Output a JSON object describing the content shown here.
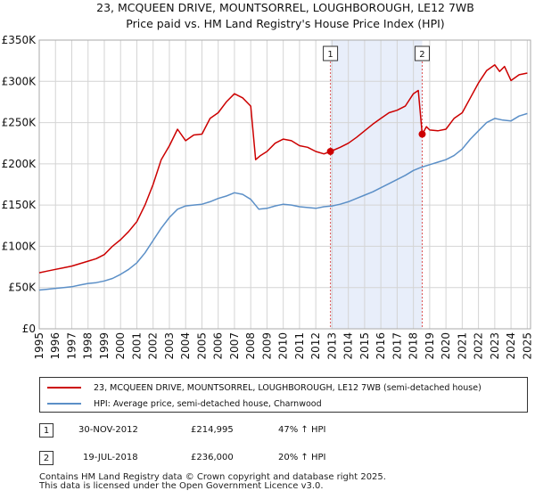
{
  "chart_data": {
    "type": "line",
    "title": "23, MCQUEEN DRIVE, MOUNTSORREL, LOUGHBOROUGH, LE12 7WB",
    "subtitle": "Price paid vs. HM Land Registry's House Price Index (HPI)",
    "xlabel": "",
    "ylabel": "",
    "xlim": [
      1995,
      2025.2
    ],
    "ylim": [
      0,
      350000
    ],
    "grid": true,
    "xticks": [
      1995,
      1996,
      1997,
      1998,
      1999,
      2000,
      2001,
      2002,
      2003,
      2004,
      2005,
      2006,
      2007,
      2008,
      2009,
      2010,
      2011,
      2012,
      2013,
      2014,
      2015,
      2016,
      2017,
      2018,
      2019,
      2020,
      2021,
      2022,
      2023,
      2024,
      2025
    ],
    "yticks": [
      {
        "value": 0,
        "label": "£0"
      },
      {
        "value": 50000,
        "label": "£50K"
      },
      {
        "value": 100000,
        "label": "£100K"
      },
      {
        "value": 150000,
        "label": "£150K"
      },
      {
        "value": 200000,
        "label": "£200K"
      },
      {
        "value": 250000,
        "label": "£250K"
      },
      {
        "value": 300000,
        "label": "£300K"
      },
      {
        "value": 350000,
        "label": "£350K"
      }
    ],
    "series": [
      {
        "name": "23, MCQUEEN DRIVE, MOUNTSORREL, LOUGHBOROUGH, LE12 7WB (semi-detached house)",
        "color": "#cc0000",
        "x": [
          1995,
          1995.5,
          1996,
          1996.5,
          1997,
          1997.5,
          1998,
          1998.5,
          1999,
          1999.5,
          2000,
          2000.5,
          2001,
          2001.5,
          2002,
          2002.5,
          2003,
          2003.5,
          2004,
          2004.5,
          2005,
          2005.5,
          2006,
          2006.5,
          2007,
          2007.5,
          2008,
          2008.3,
          2008.6,
          2009,
          2009.5,
          2010,
          2010.5,
          2011,
          2011.5,
          2012,
          2012.5,
          2012.9,
          2013.5,
          2014,
          2014.5,
          2015,
          2015.5,
          2016,
          2016.5,
          2017,
          2017.5,
          2018,
          2018.3,
          2018.54,
          2018.6,
          2018.8,
          2019,
          2019.5,
          2020,
          2020.5,
          2021,
          2021.5,
          2022,
          2022.5,
          2023,
          2023.3,
          2023.6,
          2024,
          2024.5,
          2025
        ],
        "values": [
          68000,
          70000,
          72000,
          74000,
          76000,
          79000,
          82000,
          85000,
          90000,
          100000,
          108000,
          118000,
          130000,
          150000,
          175000,
          205000,
          222000,
          242000,
          228000,
          235000,
          236000,
          255000,
          262000,
          275000,
          285000,
          280000,
          270000,
          205000,
          210000,
          215000,
          225000,
          230000,
          228000,
          222000,
          220000,
          215000,
          212000,
          214995,
          220000,
          225000,
          232000,
          240000,
          248000,
          255000,
          262000,
          265000,
          270000,
          285000,
          289000,
          236000,
          238000,
          245000,
          241000,
          240000,
          242000,
          255000,
          262000,
          280000,
          298000,
          313000,
          320000,
          312000,
          318000,
          301000,
          308000,
          310000
        ]
      },
      {
        "name": "HPI: Average price, semi-detached house, Charnwood",
        "color": "#5b8fc7",
        "x": [
          1995,
          1995.5,
          1996,
          1996.5,
          1997,
          1997.5,
          1998,
          1998.5,
          1999,
          1999.5,
          2000,
          2000.5,
          2001,
          2001.5,
          2002,
          2002.5,
          2003,
          2003.5,
          2004,
          2004.5,
          2005,
          2005.5,
          2006,
          2006.5,
          2007,
          2007.5,
          2008,
          2008.5,
          2009,
          2009.5,
          2010,
          2010.5,
          2011,
          2011.5,
          2012,
          2012.5,
          2013,
          2013.5,
          2014,
          2014.5,
          2015,
          2015.5,
          2016,
          2016.5,
          2017,
          2017.5,
          2018,
          2018.5,
          2019,
          2019.5,
          2020,
          2020.5,
          2021,
          2021.5,
          2022,
          2022.5,
          2023,
          2023.5,
          2024,
          2024.5,
          2025
        ],
        "values": [
          47000,
          48000,
          49000,
          50000,
          51000,
          53000,
          55000,
          56000,
          58000,
          61000,
          66000,
          72000,
          80000,
          92000,
          107000,
          122000,
          135000,
          145000,
          149000,
          150000,
          151000,
          154000,
          158000,
          161000,
          165000,
          163000,
          157000,
          145000,
          146000,
          149000,
          151000,
          150000,
          148000,
          147000,
          146000,
          148000,
          149000,
          151000,
          154000,
          158000,
          162000,
          166000,
          171000,
          176000,
          181000,
          186000,
          192000,
          196000,
          199000,
          202000,
          205000,
          210000,
          218000,
          230000,
          240000,
          250000,
          255000,
          253000,
          252000,
          258000,
          261000
        ]
      }
    ],
    "shaded_range": [
      2012.9,
      2018.54
    ],
    "markers": [
      {
        "label": "1",
        "x": 2012.9,
        "y": 214995
      },
      {
        "label": "2",
        "x": 2018.54,
        "y": 236000
      }
    ]
  },
  "legend": {
    "property_label": "23, MCQUEEN DRIVE, MOUNTSORREL, LOUGHBOROUGH, LE12 7WB (semi-detached house)",
    "hpi_label": "HPI: Average price, semi-detached house, Charnwood"
  },
  "transactions": [
    {
      "num": "1",
      "date": "30-NOV-2012",
      "price": "£214,995",
      "change": "47% ↑ HPI"
    },
    {
      "num": "2",
      "date": "19-JUL-2018",
      "price": "£236,000",
      "change": "20% ↑ HPI"
    }
  ],
  "footer": {
    "line1": "Contains HM Land Registry data © Crown copyright and database right 2025.",
    "line2": "This data is licensed under the Open Government Licence v3.0."
  }
}
